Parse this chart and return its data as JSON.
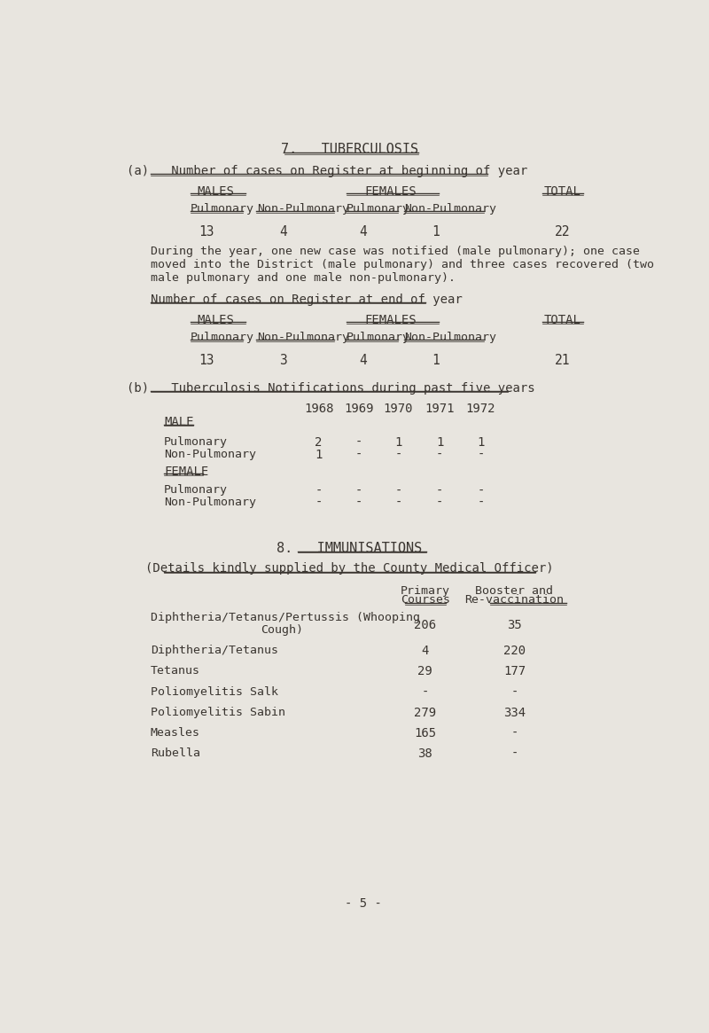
{
  "bg_color": "#e8e5df",
  "text_color": "#3a3530",
  "page_title": "7.   TUBERCULOSIS",
  "section_a_title": "(a)   Number of cases on Register at beginning of year",
  "paragraph": "During the year, one new case was notified (male pulmonary); one case\nmoved into the District (male pulmonary) and three cases recovered (two\nmale pulmonary and one male non-pulmonary).",
  "end_of_year_title": "Number of cases on Register at end of year",
  "table1_values": [
    "13",
    "4",
    "4",
    "1",
    "22"
  ],
  "table2_values": [
    "13",
    "3",
    "4",
    "1",
    "21"
  ],
  "section_b_title": "(b)   Tuberculosis Notifications during past five years",
  "notif_years": [
    "1968",
    "1969",
    "1970",
    "1971",
    "1972"
  ],
  "notif_male_pulmonary": [
    "2",
    "-",
    "1",
    "1",
    "1"
  ],
  "notif_male_nonpulmonary": [
    "1",
    "-",
    "-",
    "-",
    "-"
  ],
  "notif_female_pulmonary": [
    "-",
    "-",
    "-",
    "-",
    "-"
  ],
  "notif_female_nonpulmonary": [
    "-",
    "-",
    "-",
    "-",
    "-"
  ],
  "section8_title": "8.   IMMUNISATIONS",
  "section8_subtitle": "(Details kindly supplied by the County Medical Officer)",
  "page_number": "- 5 -",
  "immun_rows": [
    [
      "Diphtheria/Tetanus/Pertussis (Whooping",
      "Cough)",
      "206",
      "35"
    ],
    [
      "Diphtheria/Tetanus",
      "",
      "4",
      "220"
    ],
    [
      "Tetanus",
      "",
      "29",
      "177"
    ],
    [
      "Poliomyelitis Salk",
      "",
      "-",
      "-"
    ],
    [
      "Poliomyelitis Sabin",
      "",
      "279",
      "334"
    ],
    [
      "Measles",
      "",
      "165",
      "-"
    ],
    [
      "Rubella",
      "",
      "38",
      "-"
    ]
  ]
}
